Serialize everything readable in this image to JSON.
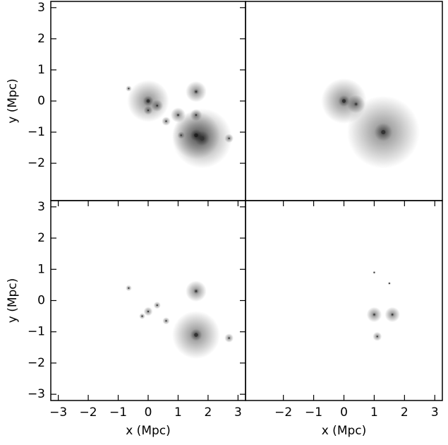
{
  "chart_data": [
    {
      "type": "scatter",
      "ylabel": "y (Mpc)",
      "xlim": [
        -3.25,
        3.25
      ],
      "ylim": [
        -3.2,
        3.2
      ],
      "yticks": [
        {
          "value": -2,
          "label": "−2"
        },
        {
          "value": -1,
          "label": "−1"
        },
        0,
        1,
        2,
        3
      ],
      "series": [
        {
          "color": "#333333",
          "x": [
            0,
            1.6,
            1.8,
            1.6,
            1.0,
            1.6,
            0.3,
            0.6,
            0,
            -0.65,
            2.7,
            1.1
          ],
          "y": [
            0,
            -1.1,
            -1.2,
            0.3,
            -0.45,
            -0.45,
            -0.15,
            -0.65,
            -0.3,
            0.4,
            -1.2,
            -1.1
          ],
          "sizes": [
            0.7,
            0.8,
            1.0,
            0.35,
            0.25,
            0.2,
            0.2,
            0.15,
            0.15,
            0.1,
            0.15,
            0.12
          ]
        }
      ]
    },
    {
      "type": "scatter",
      "xlim": [
        -3.25,
        3.25
      ],
      "ylim": [
        -3.2,
        3.2
      ],
      "series": [
        {
          "color": "#333333",
          "x": [
            0,
            0.4,
            1.3
          ],
          "y": [
            0,
            -0.1,
            -1.0
          ],
          "sizes": [
            0.75,
            0.3,
            1.2
          ]
        }
      ]
    },
    {
      "type": "scatter",
      "xlabel": "x (Mpc)",
      "ylabel": "y (Mpc)",
      "xlim": [
        -3.25,
        3.25
      ],
      "ylim": [
        -3.2,
        3.2
      ],
      "xticks": [
        {
          "value": -3,
          "label": "−3"
        },
        {
          "value": -2,
          "label": "−2"
        },
        {
          "value": -1,
          "label": "−1"
        },
        0,
        1,
        2,
        3
      ],
      "yticks": [
        {
          "value": -3,
          "label": "−3"
        },
        {
          "value": -2,
          "label": "−2"
        },
        {
          "value": -1,
          "label": "−1"
        },
        0,
        1,
        2,
        3
      ],
      "series": [
        {
          "color": "#333333",
          "x": [
            1.6,
            1.6,
            0.3,
            0,
            0.6,
            -0.65,
            2.7,
            -0.2
          ],
          "y": [
            -1.1,
            0.3,
            -0.15,
            -0.35,
            -0.65,
            0.4,
            -1.2,
            -0.5
          ],
          "sizes": [
            0.8,
            0.35,
            0.12,
            0.15,
            0.12,
            0.1,
            0.15,
            0.1
          ]
        }
      ]
    },
    {
      "type": "scatter",
      "xlabel": "x (Mpc)",
      "xlim": [
        -3.25,
        3.25
      ],
      "ylim": [
        -3.2,
        3.2
      ],
      "xticks": [
        {
          "value": -2,
          "label": "−2"
        },
        {
          "value": -1,
          "label": "−1"
        },
        0,
        1,
        2,
        3
      ],
      "series": [
        {
          "color": "#333333",
          "x": [
            1.0,
            1.6,
            1.1,
            1.5,
            1.0
          ],
          "y": [
            -0.45,
            -0.45,
            -1.15,
            0.55,
            0.9
          ],
          "sizes": [
            0.25,
            0.25,
            0.15,
            0.05,
            0.05
          ]
        }
      ]
    }
  ]
}
